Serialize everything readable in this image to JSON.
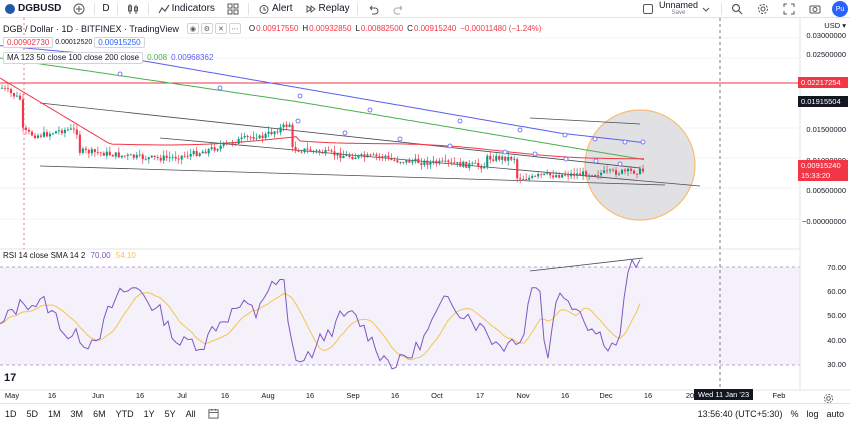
{
  "toolbar": {
    "symbol": "DGBUSD",
    "interval": "D",
    "indicators_label": "Indicators",
    "alert_label": "Alert",
    "replay_label": "Replay",
    "layout_name": "Unnamed",
    "layout_status": "Save",
    "publish_label": "Pu"
  },
  "legend": {
    "title": "DGB / Dollar · 1D · BITFINEX · TradingView",
    "open_label": "O",
    "open": "0.00917550",
    "high_label": "H",
    "high": "0.00932850",
    "low_label": "L",
    "low": "0.00882500",
    "close_label": "C",
    "close": "0.00915240",
    "change": "−0.00011480 (−1.24%)",
    "bid": "0.00902730",
    "spread": "0.00012520",
    "ask": "0.00915250",
    "ma_label": "MA 123 50 close 100 close 200 close",
    "ma_value_1": "0.008",
    "ma_value_2": "0.00968362"
  },
  "rsi_legend": {
    "label": "RSI 14 close SMA 14 2",
    "value_1": "70.00",
    "value_2": "54.10"
  },
  "price_axis": {
    "currency": "USD",
    "labels": [
      "0.03000000",
      "0.02500000",
      "0.01500000",
      "0.01000000",
      "0.00500000",
      "−0.00000000"
    ],
    "alert_price": "0.02217254",
    "crosshair_price": "0.01915504",
    "last_price": "0.00915240",
    "countdown": "15:33:20"
  },
  "rsi_axis": {
    "labels": [
      "70.00",
      "60.00",
      "50.00",
      "40.00",
      "30.00"
    ]
  },
  "time_axis": {
    "labels": [
      "May",
      "16",
      "Jun",
      "16",
      "Jul",
      "16",
      "Aug",
      "16",
      "Sep",
      "16",
      "Oct",
      "17",
      "Nov",
      "16",
      "Dec",
      "16",
      "20",
      "Feb"
    ],
    "crosshair_date": "Wed 11 Jan '23"
  },
  "bottom_bar": {
    "ranges": [
      "1D",
      "5D",
      "1M",
      "3M",
      "6M",
      "YTD",
      "1Y",
      "5Y",
      "All"
    ],
    "time": "13:56:40 (UTC+5:30)",
    "percent": "%",
    "log": "log",
    "auto": "auto"
  },
  "colors": {
    "up": "#089981",
    "down": "#f23645",
    "ma_short": "#f23645",
    "ma_mid": "#4caf50",
    "ma_long": "#5b5ef0",
    "rsi": "#7e57c2",
    "rsi_ma": "#f5c451",
    "highlight_circle": "#f7a843"
  }
}
